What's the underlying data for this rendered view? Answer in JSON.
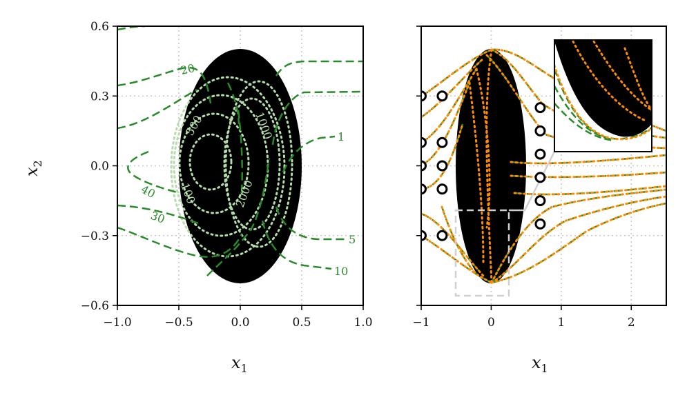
{
  "chart_data": [
    {
      "type": "contour",
      "xlabel": "x1",
      "ylabel": "x2",
      "xlim": [
        -1.0,
        1.0
      ],
      "ylim": [
        -0.6,
        0.6
      ],
      "x_ticks": [
        -1.0,
        -0.5,
        0.0,
        0.5,
        1.0
      ],
      "x_tick_labels": [
        "−1.0",
        "−0.5",
        "0.0",
        "0.5",
        "1.0"
      ],
      "y_ticks": [
        0.6,
        0.3,
        0.0,
        -0.3,
        -0.6
      ],
      "y_tick_labels": [
        "0.6",
        "0.3",
        "0.0",
        "−0.3",
        "−0.6"
      ],
      "grid": true,
      "ellipse": {
        "cx": 0.0,
        "cy": 0.0,
        "rx": 0.5,
        "ry": 0.5,
        "color": "#000000"
      },
      "colors": {
        "outer_contours": "#2a8a2a",
        "inner_contours": "#b6dcab"
      },
      "outer_levels": [
        "20",
        "1",
        "40",
        "30",
        "5",
        "10"
      ],
      "inner_levels": [
        "500",
        "1000",
        "100",
        "2000"
      ]
    },
    {
      "type": "line",
      "xlabel": "x1",
      "xlim": [
        -1.0,
        2.5
      ],
      "ylim": [
        -0.6,
        0.6
      ],
      "x_ticks": [
        -1,
        0,
        1,
        2
      ],
      "x_tick_labels": [
        "−1",
        "0",
        "1",
        "2"
      ],
      "y_ticks": [
        0.6,
        0.3,
        0.0,
        -0.3,
        -0.6
      ],
      "grid": true,
      "ellipse": {
        "cx": 0.0,
        "cy": 0.0,
        "rx": 0.25,
        "ry": 0.5,
        "color": "#000000"
      },
      "colors": {
        "dashed_series": "#2a8a2a",
        "dotted_series": "#ff8c00",
        "markers": "#000000"
      },
      "markers_left": [
        [
          -1.0,
          0.3
        ],
        [
          -0.7,
          0.3
        ],
        [
          -1.0,
          0.1
        ],
        [
          -0.7,
          0.1
        ],
        [
          -1.0,
          0.0
        ],
        [
          -0.7,
          0.0
        ],
        [
          -1.0,
          -0.1
        ],
        [
          -0.7,
          -0.1
        ],
        [
          -1.0,
          -0.3
        ],
        [
          -0.7,
          -0.3
        ]
      ],
      "markers_right": [
        [
          0.7,
          0.25
        ],
        [
          0.7,
          0.15
        ],
        [
          0.7,
          0.05
        ],
        [
          0.7,
          -0.05
        ],
        [
          0.7,
          -0.15
        ],
        [
          0.7,
          -0.25
        ]
      ],
      "zoom_box": {
        "x": [
          -0.5,
          0.25
        ],
        "y": [
          -0.55,
          -0.18
        ]
      }
    }
  ]
}
